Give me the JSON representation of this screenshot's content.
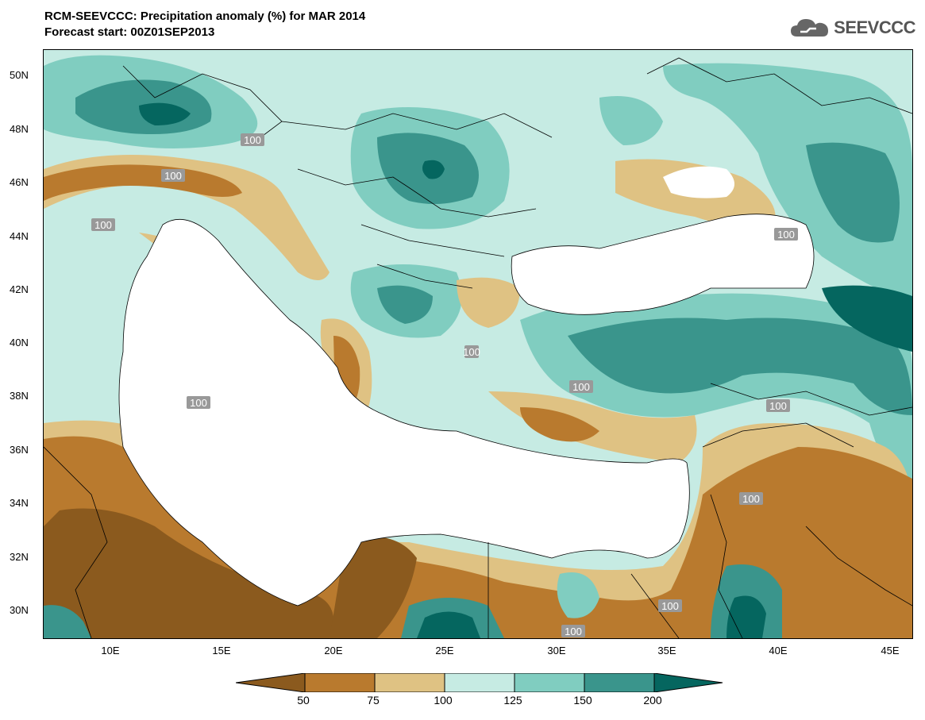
{
  "header": {
    "title_line1": "RCM-SEEVCCC: Precipitation anomaly (%) for MAR 2014",
    "title_line2": "Forecast start: 00Z01SEP2013",
    "logo_text": "SEEVCCC"
  },
  "map": {
    "lat_labels": [
      "50N",
      "48N",
      "46N",
      "44N",
      "42N",
      "40N",
      "38N",
      "36N",
      "34N",
      "32N",
      "30N"
    ],
    "lon_labels": [
      "10E",
      "15E",
      "20E",
      "25E",
      "30E",
      "35E",
      "40E",
      "45E"
    ],
    "contour_labels": [
      "100",
      "100",
      "100",
      "100",
      "100",
      "100",
      "100",
      "100",
      "100",
      "100",
      "100"
    ]
  },
  "colorbar": {
    "labels": [
      "50",
      "75",
      "100",
      "125",
      "150",
      "200"
    ],
    "colors": [
      "#8b5a1e",
      "#b97a2e",
      "#dfc283",
      "#c6ebe3",
      "#80cdc0",
      "#3a958c",
      "#05665f"
    ]
  }
}
